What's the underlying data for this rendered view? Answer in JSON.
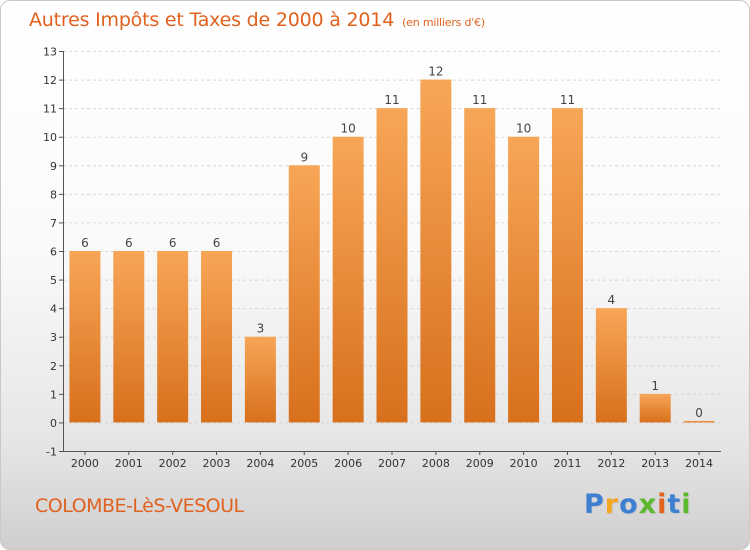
{
  "title": "Autres Impôts et Taxes de 2000 à 2014",
  "unit_note": "(en milliers d'€)",
  "commune": "COLOMBE-LèS-VESOUL",
  "logo": {
    "text": "Proxiti",
    "letters": [
      "P",
      "r",
      "o",
      "x",
      "i",
      "t",
      "i"
    ]
  },
  "colors": {
    "accent": "#e0621e",
    "bar_top": "#f7a657",
    "bar_bottom": "#d8701c"
  },
  "chart_data": {
    "type": "bar",
    "title": "Autres Impôts et Taxes de 2000 à 2014",
    "subtitle": "(en milliers d'€)",
    "xlabel": "",
    "ylabel": "",
    "categories": [
      "2000",
      "2001",
      "2002",
      "2003",
      "2004",
      "2005",
      "2006",
      "2007",
      "2008",
      "2009",
      "2010",
      "2011",
      "2012",
      "2013",
      "2014"
    ],
    "values": [
      6,
      6,
      6,
      6,
      3,
      9,
      10,
      11,
      12,
      11,
      10,
      11,
      4,
      1,
      0
    ],
    "data_labels": [
      "6",
      "6",
      "6",
      "6",
      "3",
      "9",
      "10",
      "11",
      "12",
      "11",
      "10",
      "11",
      "4",
      "1",
      "0"
    ],
    "ylim": [
      -1,
      13
    ],
    "yticks": [
      -1,
      0,
      1,
      2,
      3,
      4,
      5,
      6,
      7,
      8,
      9,
      10,
      11,
      12,
      13
    ],
    "grid": true,
    "legend": "none"
  }
}
